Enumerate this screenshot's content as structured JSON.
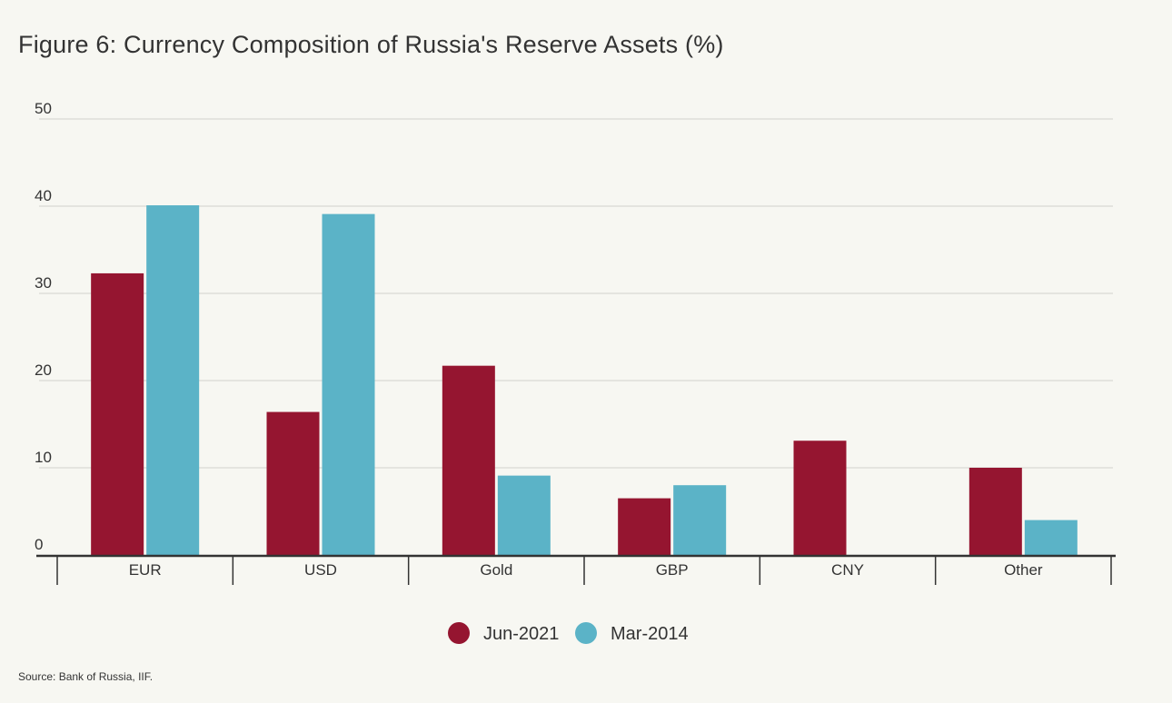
{
  "title": "Figure 6: Currency Composition of Russia's Reserve Assets (%)",
  "source": "Source: Bank of Russia, IIF.",
  "colors": {
    "jun_2021": "#951530",
    "mar_2014": "#5bb3c7",
    "gridline": "#d9d9d4",
    "axis": "#333333",
    "background": "#f7f7f2"
  },
  "chart_data": {
    "type": "bar",
    "title": "Figure 6: Currency Composition of Russia's Reserve Assets (%)",
    "xlabel": "",
    "ylabel": "",
    "categories": [
      "EUR",
      "USD",
      "Gold",
      "GBP",
      "CNY",
      "Other"
    ],
    "series": [
      {
        "name": "Jun-2021",
        "color": "#951530",
        "values": [
          32.3,
          16.4,
          21.7,
          6.5,
          13.1,
          10.0
        ]
      },
      {
        "name": "Mar-2014",
        "color": "#5bb3c7",
        "values": [
          40.1,
          39.1,
          9.1,
          8.0,
          0.0,
          4.0
        ]
      }
    ],
    "ylim": [
      0,
      50
    ],
    "yticks": [
      0,
      10,
      20,
      30,
      40,
      50
    ],
    "grid": true,
    "legend": "bottom-center"
  }
}
